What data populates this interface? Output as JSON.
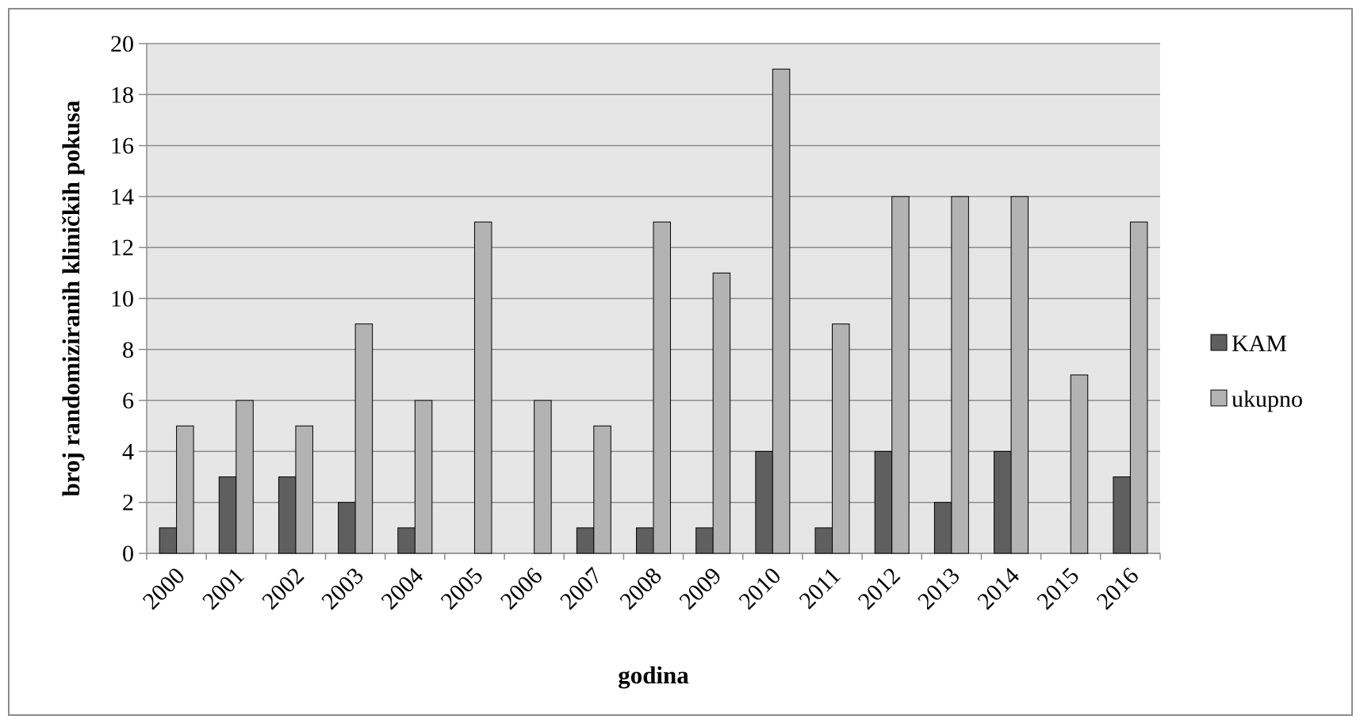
{
  "chart_data": {
    "type": "bar",
    "title": "",
    "xlabel": "godina",
    "ylabel": "broj randomiziranih kliničkih pokusa",
    "ylim": [
      0,
      20
    ],
    "yticks": [
      "0",
      "2",
      "4",
      "6",
      "8",
      "10",
      "12",
      "14",
      "16",
      "18",
      "20"
    ],
    "grid": true,
    "legend_position": "right",
    "categories": [
      "2000",
      "2001",
      "2002",
      "2003",
      "2004",
      "2005",
      "2006",
      "2007",
      "2008",
      "2009",
      "2010",
      "2011",
      "2012",
      "2013",
      "2014",
      "2015",
      "2016"
    ],
    "series": [
      {
        "name": "KAM",
        "color": "#5f5f5f",
        "values": [
          1,
          3,
          3,
          2,
          1,
          0,
          0,
          1,
          1,
          1,
          4,
          1,
          4,
          2,
          4,
          0,
          3
        ]
      },
      {
        "name": "ukupno",
        "color": "#b3b3b3",
        "values": [
          5,
          6,
          5,
          9,
          6,
          13,
          6,
          5,
          13,
          11,
          19,
          9,
          14,
          14,
          14,
          7,
          13
        ]
      }
    ],
    "plot_background": "#e6e6e6",
    "gridline_color": "#8c8c8c"
  }
}
